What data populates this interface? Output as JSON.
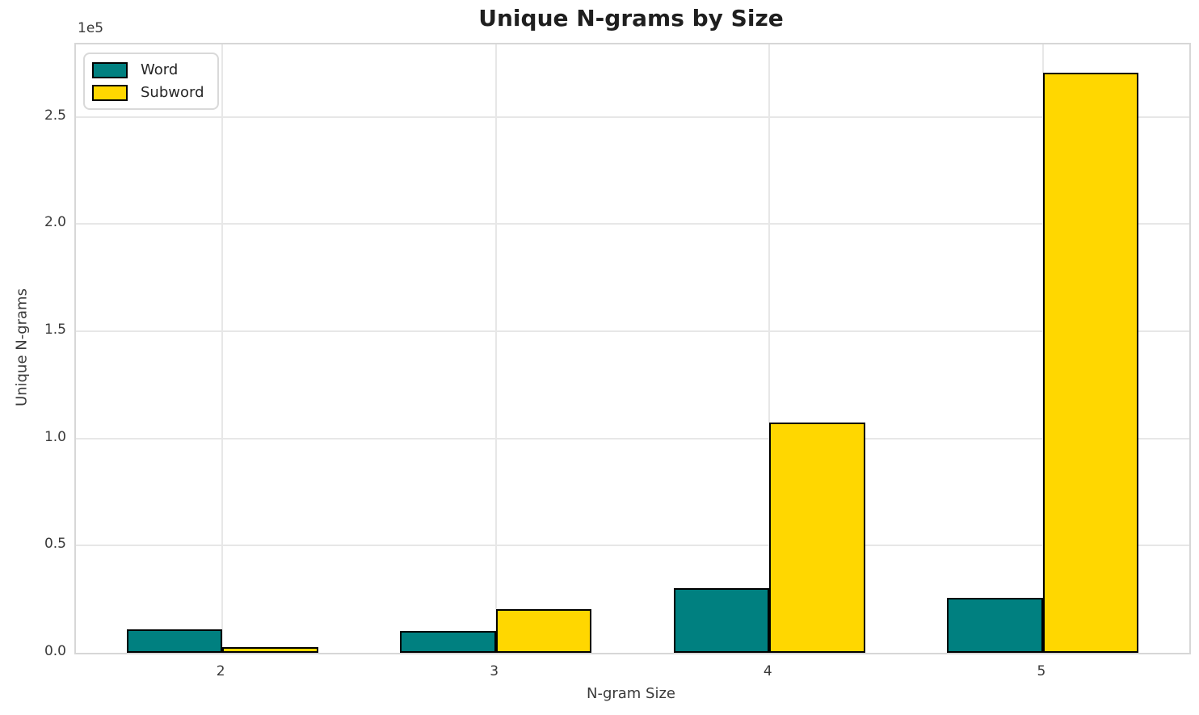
{
  "chart_data": {
    "type": "bar",
    "title": "Unique N-grams by Size",
    "xlabel": "N-gram Size",
    "ylabel": "Unique N-grams",
    "y_offset_text": "1e5",
    "categories": [
      2,
      3,
      4,
      5
    ],
    "series": [
      {
        "name": "Word",
        "color": "#008080",
        "values": [
          11000,
          10000,
          30000,
          25500
        ]
      },
      {
        "name": "Subword",
        "color": "#FFD700",
        "values": [
          2500,
          20500,
          107500,
          270500
        ]
      }
    ],
    "bar_width": 0.35,
    "bar_edge_color": "#000000",
    "xlim": [
      1.465,
      5.535
    ],
    "ylim": [
      0,
      283800
    ],
    "yticks": [
      {
        "value": 0,
        "label": "0.0"
      },
      {
        "value": 50000,
        "label": "0.5"
      },
      {
        "value": 100000,
        "label": "1.0"
      },
      {
        "value": 150000,
        "label": "1.5"
      },
      {
        "value": 200000,
        "label": "2.0"
      },
      {
        "value": 250000,
        "label": "2.5"
      }
    ],
    "xticks": [
      {
        "value": 2,
        "label": "2"
      },
      {
        "value": 3,
        "label": "3"
      },
      {
        "value": 4,
        "label": "4"
      },
      {
        "value": 5,
        "label": "5"
      }
    ],
    "grid": true,
    "grid_color": "#e7e7e7",
    "spine_color": "#d7d7d7",
    "legend_position": "upper left",
    "legend_labels": [
      "Word",
      "Subword"
    ]
  }
}
